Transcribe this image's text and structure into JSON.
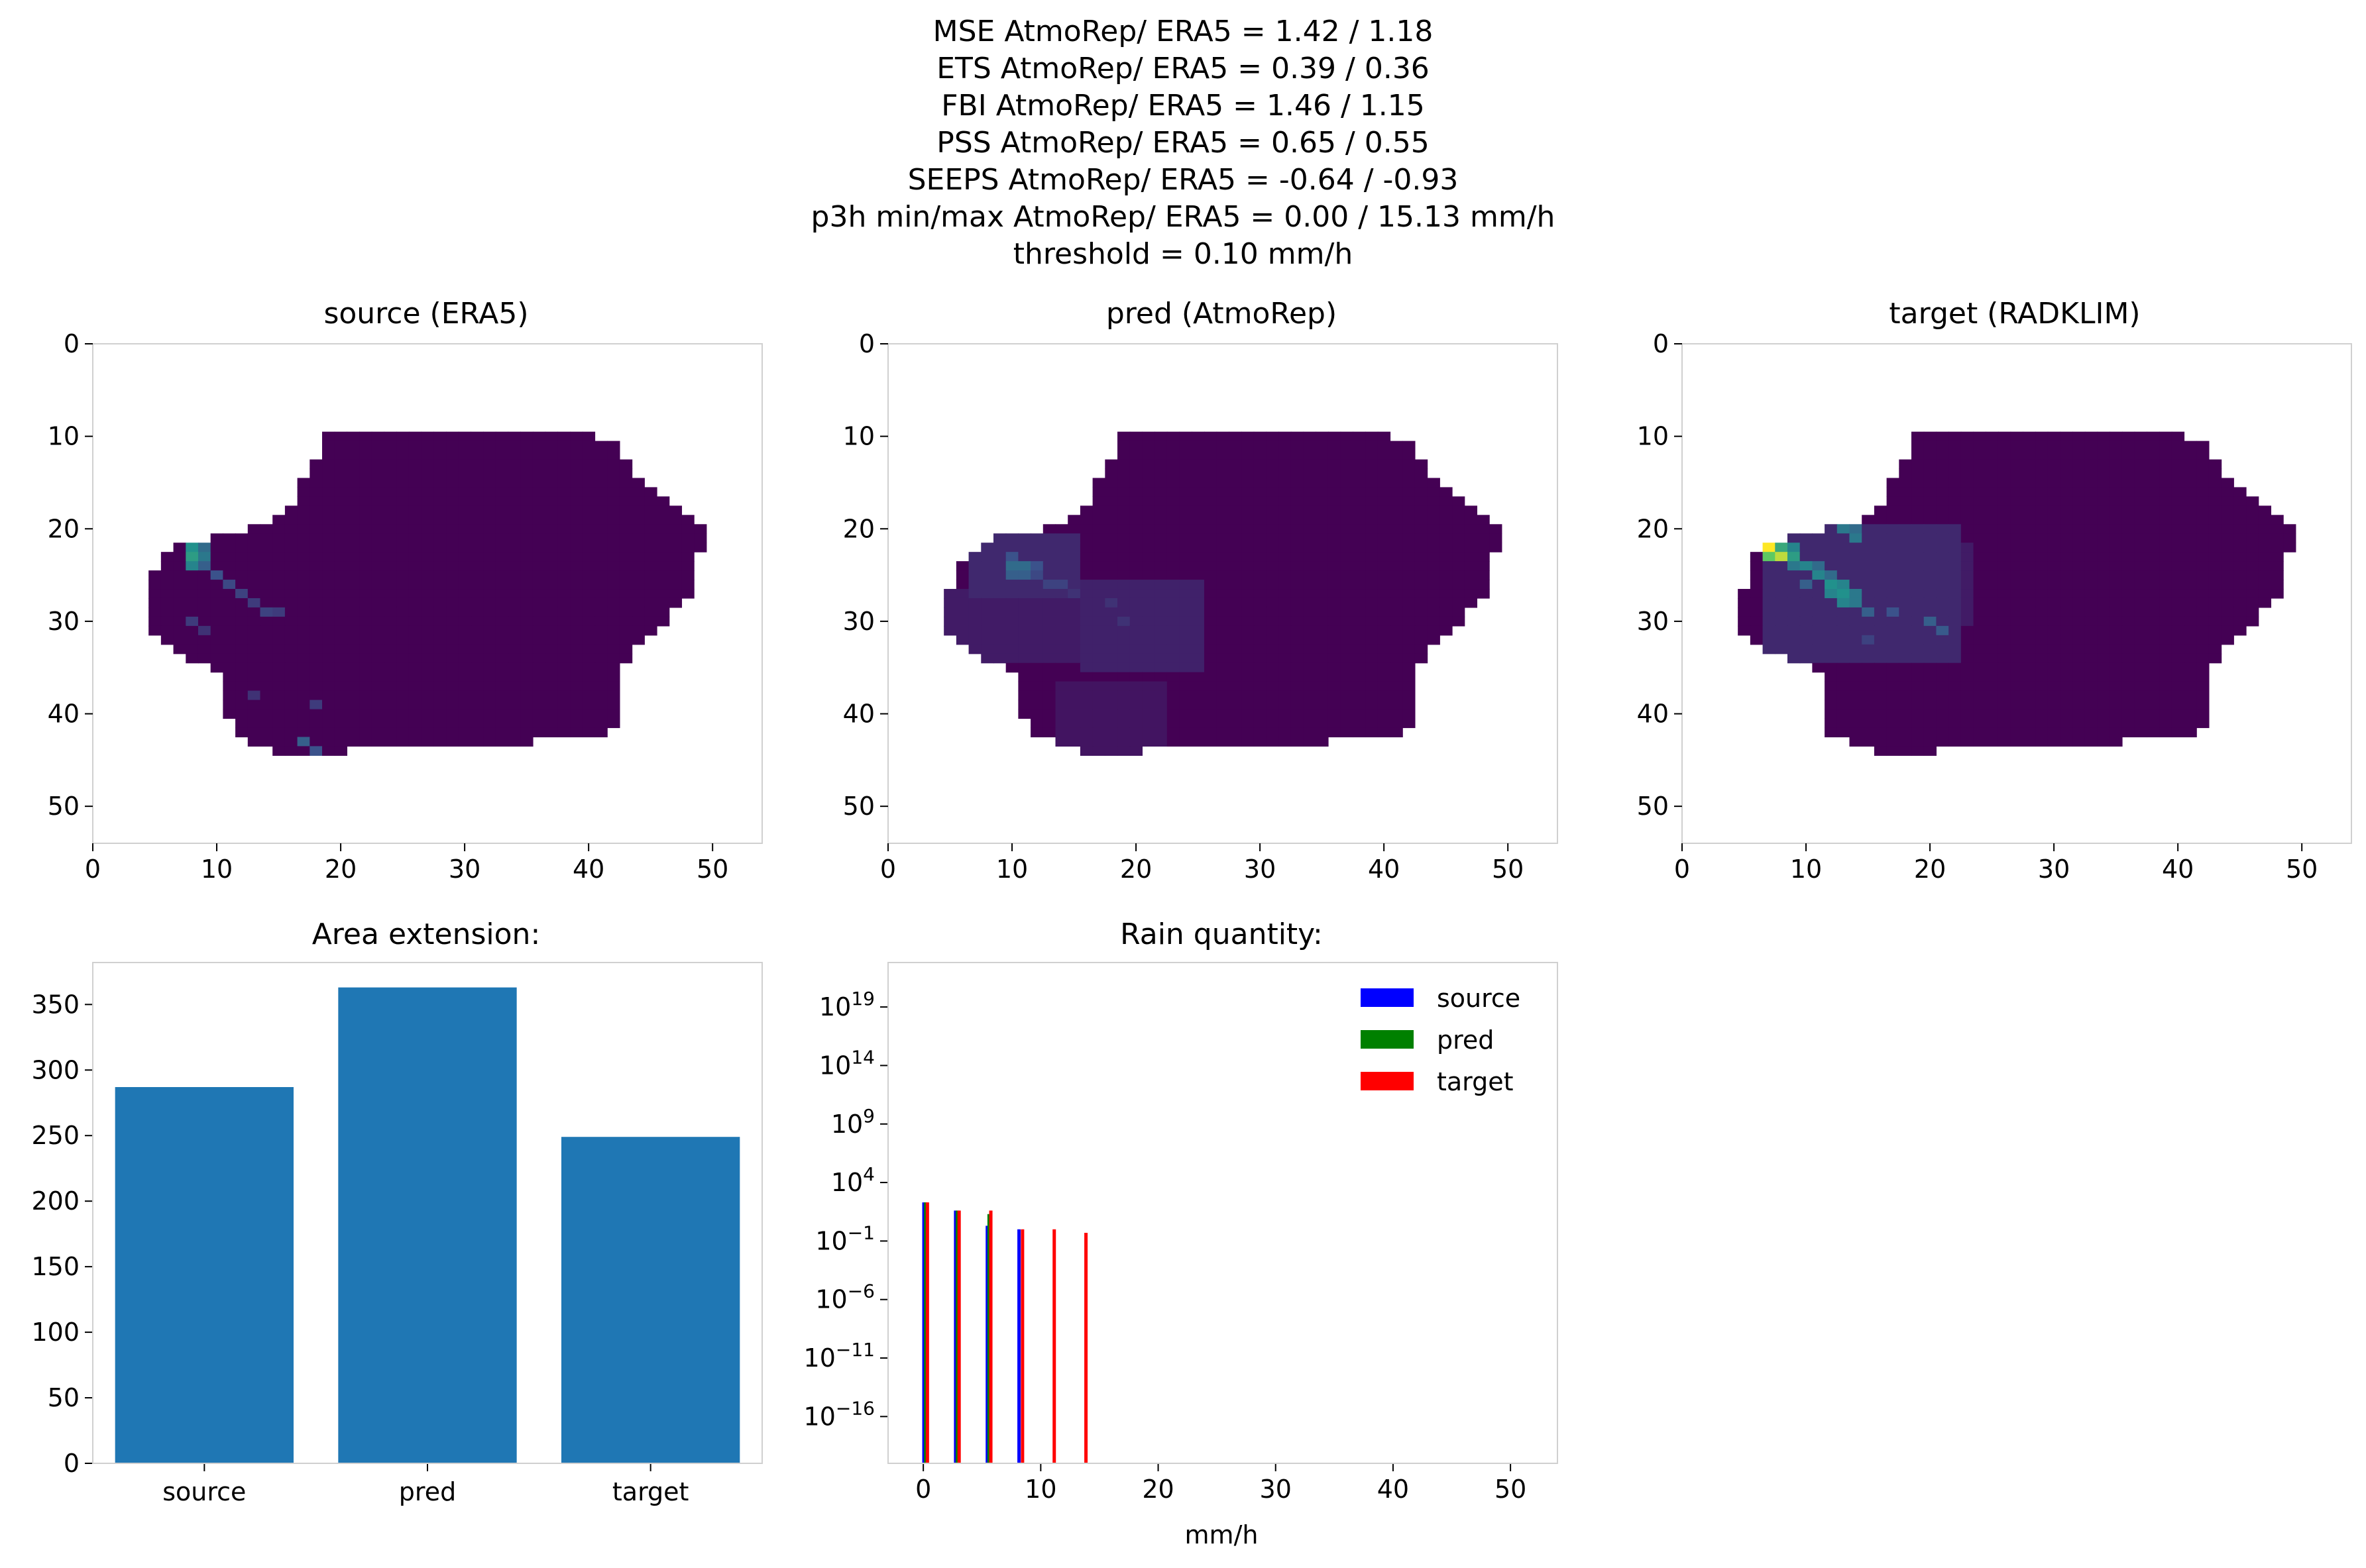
{
  "suptitle": [
    "MSE AtmoRep/ ERA5 = 1.42 / 1.18",
    "ETS AtmoRep/ ERA5 = 0.39 / 0.36",
    "FBI AtmoRep/ ERA5 = 1.46 / 1.15",
    "PSS AtmoRep/ ERA5 = 0.65 / 0.55",
    "SEEPS AtmoRep/ ERA5 = -0.64 / -0.93",
    "p3h min/max AtmoRep/ ERA5 = 0.00 / 15.13 mm/h",
    "threshold = 0.10 mm/h"
  ],
  "colors": {
    "bar": "#1f77b4",
    "source": "#0000ff",
    "pred": "#008000",
    "target": "#ff0000",
    "spine": "#d0d0d0",
    "viridis_low": "#440154",
    "viridis_mid": "#21918c",
    "viridis_high": "#fde725"
  },
  "chart_data": [
    {
      "type": "heatmap",
      "title": "source (ERA5)",
      "xlim": [
        0,
        54
      ],
      "ylim": [
        54,
        0
      ],
      "xticks": [
        "0",
        "10",
        "20",
        "30",
        "40",
        "50"
      ],
      "yticks": [
        "0",
        "10",
        "20",
        "30",
        "40",
        "50"
      ],
      "colormap": "viridis",
      "mask_rows": [
        [
          10,
          19,
          40
        ],
        [
          11,
          19,
          42
        ],
        [
          12,
          19,
          42
        ],
        [
          13,
          18,
          43
        ],
        [
          14,
          18,
          43
        ],
        [
          15,
          17,
          44
        ],
        [
          16,
          17,
          45
        ],
        [
          17,
          17,
          46
        ],
        [
          18,
          16,
          47
        ],
        [
          19,
          15,
          48
        ],
        [
          20,
          13,
          49
        ],
        [
          21,
          10,
          49
        ],
        [
          22,
          7,
          49
        ],
        [
          23,
          6,
          48
        ],
        [
          24,
          6,
          48
        ],
        [
          25,
          5,
          48
        ],
        [
          26,
          5,
          48
        ],
        [
          27,
          5,
          48
        ],
        [
          28,
          5,
          47
        ],
        [
          29,
          5,
          46
        ],
        [
          30,
          5,
          46
        ],
        [
          31,
          5,
          45
        ],
        [
          32,
          6,
          44
        ],
        [
          33,
          7,
          43
        ],
        [
          34,
          8,
          43
        ],
        [
          35,
          10,
          42
        ],
        [
          36,
          11,
          42
        ],
        [
          37,
          11,
          42
        ],
        [
          38,
          11,
          42
        ],
        [
          39,
          11,
          42
        ],
        [
          40,
          11,
          42
        ],
        [
          41,
          12,
          42
        ],
        [
          42,
          12,
          41
        ],
        [
          43,
          13,
          35
        ],
        [
          44,
          15,
          20
        ]
      ],
      "hotspots": [
        {
          "r": 23,
          "c": 8,
          "v": 0.55
        },
        {
          "r": 22,
          "c": 8,
          "v": 0.5
        },
        {
          "r": 24,
          "c": 8,
          "v": 0.45
        },
        {
          "r": 23,
          "c": 9,
          "v": 0.4
        },
        {
          "r": 22,
          "c": 9,
          "v": 0.35
        },
        {
          "r": 24,
          "c": 9,
          "v": 0.3
        },
        {
          "r": 25,
          "c": 10,
          "v": 0.25
        },
        {
          "r": 26,
          "c": 11,
          "v": 0.22
        },
        {
          "r": 27,
          "c": 12,
          "v": 0.2
        },
        {
          "r": 28,
          "c": 13,
          "v": 0.18
        },
        {
          "r": 29,
          "c": 14,
          "v": 0.2
        },
        {
          "r": 29,
          "c": 15,
          "v": 0.18
        },
        {
          "r": 30,
          "c": 8,
          "v": 0.18
        },
        {
          "r": 31,
          "c": 9,
          "v": 0.15
        },
        {
          "r": 43,
          "c": 17,
          "v": 0.3
        },
        {
          "r": 44,
          "c": 18,
          "v": 0.25
        },
        {
          "r": 39,
          "c": 18,
          "v": 0.18
        },
        {
          "r": 38,
          "c": 13,
          "v": 0.15
        }
      ]
    },
    {
      "type": "heatmap",
      "title": "pred (AtmoRep)",
      "xlim": [
        0,
        54
      ],
      "ylim": [
        54,
        0
      ],
      "xticks": [
        "0",
        "10",
        "20",
        "30",
        "40",
        "50"
      ],
      "yticks": [
        "0",
        "10",
        "20",
        "30",
        "40",
        "50"
      ],
      "colormap": "viridis",
      "mask_rows": [
        [
          10,
          19,
          40
        ],
        [
          11,
          19,
          42
        ],
        [
          12,
          19,
          42
        ],
        [
          13,
          18,
          43
        ],
        [
          14,
          18,
          43
        ],
        [
          15,
          17,
          44
        ],
        [
          16,
          17,
          45
        ],
        [
          17,
          17,
          46
        ],
        [
          18,
          16,
          47
        ],
        [
          19,
          15,
          48
        ],
        [
          20,
          13,
          49
        ],
        [
          21,
          9,
          49
        ],
        [
          22,
          8,
          49
        ],
        [
          23,
          7,
          48
        ],
        [
          24,
          6,
          48
        ],
        [
          25,
          6,
          48
        ],
        [
          26,
          6,
          48
        ],
        [
          27,
          5,
          48
        ],
        [
          28,
          5,
          47
        ],
        [
          29,
          5,
          46
        ],
        [
          30,
          5,
          46
        ],
        [
          31,
          5,
          45
        ],
        [
          32,
          6,
          44
        ],
        [
          33,
          7,
          43
        ],
        [
          34,
          8,
          43
        ],
        [
          35,
          10,
          42
        ],
        [
          36,
          11,
          42
        ],
        [
          37,
          11,
          42
        ],
        [
          38,
          11,
          42
        ],
        [
          39,
          11,
          42
        ],
        [
          40,
          11,
          42
        ],
        [
          41,
          12,
          42
        ],
        [
          42,
          12,
          41
        ],
        [
          43,
          14,
          35
        ],
        [
          44,
          16,
          20
        ]
      ],
      "hotspots": [
        {
          "r": 24,
          "c": 10,
          "v": 0.35
        },
        {
          "r": 24,
          "c": 11,
          "v": 0.35
        },
        {
          "r": 25,
          "c": 10,
          "v": 0.3
        },
        {
          "r": 25,
          "c": 11,
          "v": 0.3
        },
        {
          "r": 23,
          "c": 10,
          "v": 0.25
        },
        {
          "r": 24,
          "c": 12,
          "v": 0.25
        },
        {
          "r": 25,
          "c": 12,
          "v": 0.22
        },
        {
          "r": 26,
          "c": 13,
          "v": 0.2
        },
        {
          "r": 26,
          "c": 14,
          "v": 0.2
        },
        {
          "r": 27,
          "c": 15,
          "v": 0.15
        },
        {
          "r": 28,
          "c": 18,
          "v": 0.15
        },
        {
          "r": 30,
          "c": 19,
          "v": 0.15
        }
      ],
      "washes": [
        {
          "r0": 21,
          "r1": 27,
          "c0": 7,
          "c1": 15,
          "v": 0.12
        },
        {
          "r0": 26,
          "r1": 35,
          "c0": 16,
          "c1": 25,
          "v": 0.1
        },
        {
          "r0": 27,
          "r1": 34,
          "c0": 5,
          "c1": 16,
          "v": 0.08
        },
        {
          "r0": 37,
          "r1": 44,
          "c0": 14,
          "c1": 22,
          "v": 0.06
        }
      ]
    },
    {
      "type": "heatmap",
      "title": "target (RADKLIM)",
      "xlim": [
        0,
        54
      ],
      "ylim": [
        54,
        0
      ],
      "xticks": [
        "0",
        "10",
        "20",
        "30",
        "40",
        "50"
      ],
      "yticks": [
        "0",
        "10",
        "20",
        "30",
        "40",
        "50"
      ],
      "colormap": "viridis",
      "mask_rows": [
        [
          10,
          19,
          40
        ],
        [
          11,
          19,
          42
        ],
        [
          12,
          19,
          42
        ],
        [
          13,
          18,
          43
        ],
        [
          14,
          18,
          43
        ],
        [
          15,
          17,
          44
        ],
        [
          16,
          17,
          45
        ],
        [
          17,
          17,
          46
        ],
        [
          18,
          16,
          47
        ],
        [
          19,
          15,
          48
        ],
        [
          20,
          12,
          49
        ],
        [
          21,
          9,
          49
        ],
        [
          22,
          7,
          49
        ],
        [
          23,
          6,
          48
        ],
        [
          24,
          6,
          48
        ],
        [
          25,
          6,
          48
        ],
        [
          26,
          6,
          48
        ],
        [
          27,
          5,
          48
        ],
        [
          28,
          5,
          47
        ],
        [
          29,
          5,
          46
        ],
        [
          30,
          5,
          46
        ],
        [
          31,
          5,
          45
        ],
        [
          32,
          6,
          44
        ],
        [
          33,
          7,
          43
        ],
        [
          34,
          9,
          43
        ],
        [
          35,
          11,
          42
        ],
        [
          36,
          12,
          42
        ],
        [
          37,
          12,
          42
        ],
        [
          38,
          12,
          42
        ],
        [
          39,
          12,
          42
        ],
        [
          40,
          12,
          42
        ],
        [
          41,
          12,
          42
        ],
        [
          42,
          12,
          41
        ],
        [
          43,
          14,
          35
        ],
        [
          44,
          16,
          20
        ]
      ],
      "hotspots": [
        {
          "r": 22,
          "c": 7,
          "v": 1.0
        },
        {
          "r": 23,
          "c": 8,
          "v": 0.9
        },
        {
          "r": 23,
          "c": 7,
          "v": 0.75
        },
        {
          "r": 22,
          "c": 8,
          "v": 0.6
        },
        {
          "r": 23,
          "c": 9,
          "v": 0.55
        },
        {
          "r": 22,
          "c": 9,
          "v": 0.45
        },
        {
          "r": 24,
          "c": 9,
          "v": 0.4
        },
        {
          "r": 24,
          "c": 10,
          "v": 0.45
        },
        {
          "r": 25,
          "c": 11,
          "v": 0.45
        },
        {
          "r": 26,
          "c": 12,
          "v": 0.5
        },
        {
          "r": 26,
          "c": 13,
          "v": 0.45
        },
        {
          "r": 27,
          "c": 12,
          "v": 0.45
        },
        {
          "r": 27,
          "c": 13,
          "v": 0.5
        },
        {
          "r": 28,
          "c": 13,
          "v": 0.45
        },
        {
          "r": 28,
          "c": 14,
          "v": 0.4
        },
        {
          "r": 27,
          "c": 14,
          "v": 0.4
        },
        {
          "r": 25,
          "c": 12,
          "v": 0.35
        },
        {
          "r": 24,
          "c": 11,
          "v": 0.35
        },
        {
          "r": 20,
          "c": 13,
          "v": 0.4
        },
        {
          "r": 21,
          "c": 14,
          "v": 0.4
        },
        {
          "r": 20,
          "c": 14,
          "v": 0.35
        },
        {
          "r": 29,
          "c": 15,
          "v": 0.3
        },
        {
          "r": 30,
          "c": 20,
          "v": 0.3
        },
        {
          "r": 31,
          "c": 21,
          "v": 0.28
        },
        {
          "r": 29,
          "c": 17,
          "v": 0.25
        },
        {
          "r": 32,
          "c": 15,
          "v": 0.2
        },
        {
          "r": 26,
          "c": 10,
          "v": 0.3
        }
      ],
      "washes": [
        {
          "r0": 20,
          "r1": 34,
          "c0": 7,
          "c1": 22,
          "v": 0.12
        },
        {
          "r0": 22,
          "r1": 30,
          "c0": 16,
          "c1": 23,
          "v": 0.08
        }
      ]
    },
    {
      "type": "bar",
      "title": "Area extension:",
      "categories": [
        "source",
        "pred",
        "target"
      ],
      "values": [
        287,
        363,
        249
      ],
      "ylim": [
        0,
        382
      ],
      "yticks": [
        0,
        50,
        100,
        150,
        200,
        250,
        300,
        350
      ]
    },
    {
      "type": "bar",
      "title": "Rain quantity:",
      "xlabel": "mm/h",
      "yscale": "log",
      "xlim": [
        -3,
        54
      ],
      "ylim_exp": [
        -20,
        22.8
      ],
      "xticks": [
        0,
        10,
        20,
        30,
        40,
        50
      ],
      "yticks_exp": [
        19,
        14,
        9,
        4,
        -1,
        -6,
        -11,
        -16
      ],
      "series": [
        {
          "name": "source",
          "x": [
            0.05,
            2.75,
            5.45,
            8.15
          ],
          "values": [
            200,
            40,
            2,
            1
          ]
        },
        {
          "name": "pred",
          "x": [
            0.2,
            2.9,
            5.6
          ],
          "values": [
            200,
            40,
            20
          ]
        },
        {
          "name": "target",
          "x": [
            0.35,
            3.05,
            5.75,
            8.45,
            11.15,
            13.85
          ],
          "values": [
            200,
            40,
            40,
            1,
            1,
            0.5
          ]
        }
      ],
      "legend": "upper right"
    }
  ]
}
